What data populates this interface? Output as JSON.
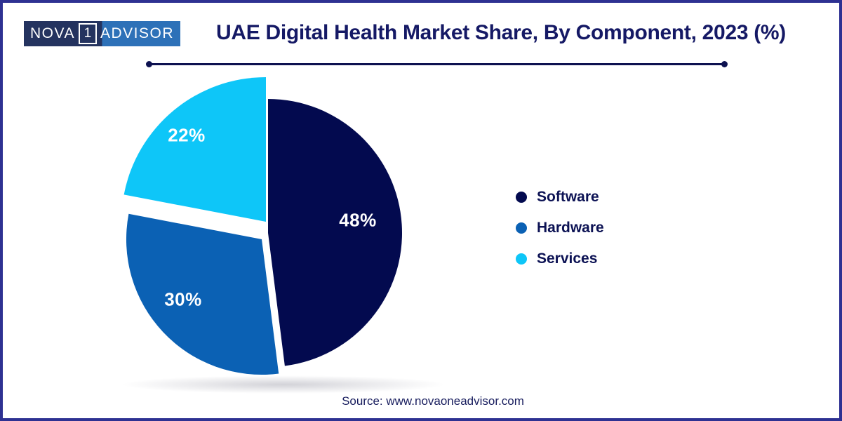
{
  "page": {
    "background": "#ffffff",
    "border_color": "#2e3192"
  },
  "logo": {
    "left_text": "NOVA",
    "box_digit": "1",
    "right_text": "ADVISOR",
    "left_bg": "#24335f",
    "right_bg": "#2d71b8"
  },
  "header": {
    "title": "UAE Digital Health Market Share, By Component, 2023 (%)"
  },
  "chart_data": {
    "type": "pie",
    "title": "UAE Digital Health Market Share, By Component, 2023 (%)",
    "unit": "%",
    "start_angle": "12 o'clock, clockwise",
    "legend_position": "right",
    "data_label_color": "#ffffff",
    "slices": [
      {
        "label": "Software",
        "value": 48,
        "data_label": "48%",
        "color": "#030a4f",
        "exploded": false
      },
      {
        "label": "Hardware",
        "value": 30,
        "data_label": "30%",
        "color": "#0b61b4",
        "exploded": false
      },
      {
        "label": "Services",
        "value": 22,
        "data_label": "22%",
        "color": "#0ec6f8",
        "exploded": true
      }
    ]
  },
  "footer": {
    "source": "Source: www.novaoneadvisor.com"
  }
}
